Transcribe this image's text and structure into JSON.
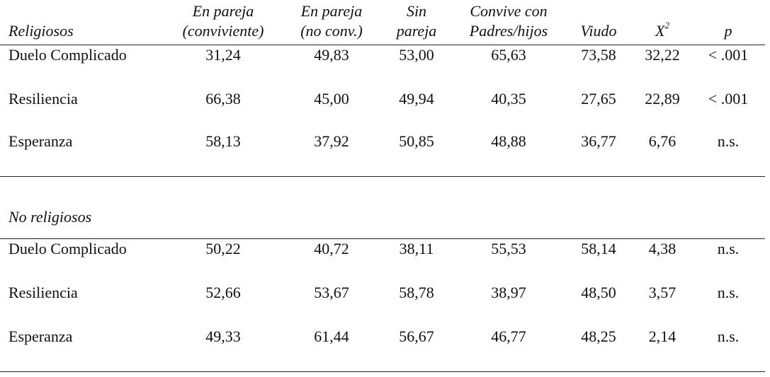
{
  "table": {
    "columns": [
      {
        "lines": [
          "En pareja",
          "(conviviente)"
        ]
      },
      {
        "lines": [
          "En pareja",
          "(no conv.)"
        ]
      },
      {
        "lines": [
          "Sin",
          "pareja"
        ]
      },
      {
        "lines": [
          "Convive con",
          "Padres/hijos"
        ]
      },
      {
        "lines": [
          "Viudo"
        ]
      },
      {
        "base": "X",
        "sup": "2"
      },
      {
        "lines": [
          "p"
        ]
      }
    ],
    "sections": [
      {
        "title": "Religiosos",
        "rows": [
          {
            "label": "Duelo Complicado",
            "values": [
              "31,24",
              "49,83",
              "53,00",
              "65,63",
              "73,58",
              "32,22",
              "< .001"
            ]
          },
          {
            "label": "Resiliencia",
            "values": [
              "66,38",
              "45,00",
              "49,94",
              "40,35",
              "27,65",
              "22,89",
              "< .001"
            ]
          },
          {
            "label": "Esperanza",
            "values": [
              "58,13",
              "37,92",
              "50,85",
              "48,88",
              "36,77",
              "6,76",
              "n.s."
            ]
          }
        ]
      },
      {
        "title": "No religiosos",
        "rows": [
          {
            "label": "Duelo Complicado",
            "values": [
              "50,22",
              "40,72",
              "38,11",
              "55,53",
              "58,14",
              "4,38",
              "n.s."
            ]
          },
          {
            "label": "Resiliencia",
            "values": [
              "52,66",
              "53,67",
              "58,78",
              "38,97",
              "48,50",
              "3,57",
              "n.s."
            ]
          },
          {
            "label": "Esperanza",
            "values": [
              "49,33",
              "61,44",
              "56,67",
              "46,77",
              "48,25",
              "2,14",
              "n.s."
            ]
          }
        ]
      }
    ]
  }
}
